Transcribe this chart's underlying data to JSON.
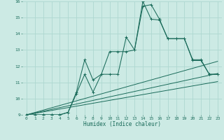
{
  "xlabel": "Humidex (Indice chaleur)",
  "bg_color": "#cceae4",
  "grid_color": "#aed8d0",
  "line_color": "#1a6b5a",
  "xlim": [
    -0.5,
    23.5
  ],
  "ylim": [
    9,
    16
  ],
  "yticks": [
    9,
    10,
    11,
    12,
    13,
    14,
    15,
    16
  ],
  "xticks": [
    0,
    1,
    2,
    3,
    4,
    5,
    6,
    7,
    8,
    9,
    10,
    11,
    12,
    13,
    14,
    15,
    16,
    17,
    18,
    19,
    20,
    21,
    22,
    23
  ],
  "series1_x": [
    0,
    1,
    2,
    3,
    4,
    5,
    6,
    7,
    8,
    9,
    10,
    11,
    12,
    13,
    14,
    15,
    16,
    17,
    18,
    19,
    20,
    21,
    22,
    23
  ],
  "series1_y": [
    9,
    9,
    9,
    9,
    9,
    9.15,
    10.4,
    12.4,
    11.15,
    11.5,
    11.5,
    11.5,
    13.8,
    13.0,
    16.0,
    14.9,
    14.85,
    13.7,
    13.7,
    13.7,
    12.4,
    12.4,
    11.5,
    11.5
  ],
  "series2_x": [
    0,
    1,
    2,
    3,
    4,
    5,
    6,
    7,
    8,
    9,
    10,
    11,
    12,
    13,
    14,
    15,
    16,
    17,
    18,
    19,
    20,
    21,
    22,
    23
  ],
  "series2_y": [
    9,
    9,
    9,
    9,
    9,
    9.15,
    10.3,
    11.5,
    10.4,
    11.5,
    12.9,
    12.9,
    12.9,
    13.0,
    15.7,
    15.8,
    14.9,
    13.7,
    13.7,
    13.7,
    12.35,
    12.35,
    11.5,
    11.5
  ],
  "line1_x": [
    0,
    23
  ],
  "line1_y": [
    9,
    12.3
  ],
  "line2_x": [
    0,
    23
  ],
  "line2_y": [
    9,
    11.55
  ],
  "line3_x": [
    0,
    23
  ],
  "line3_y": [
    9,
    11.05
  ]
}
